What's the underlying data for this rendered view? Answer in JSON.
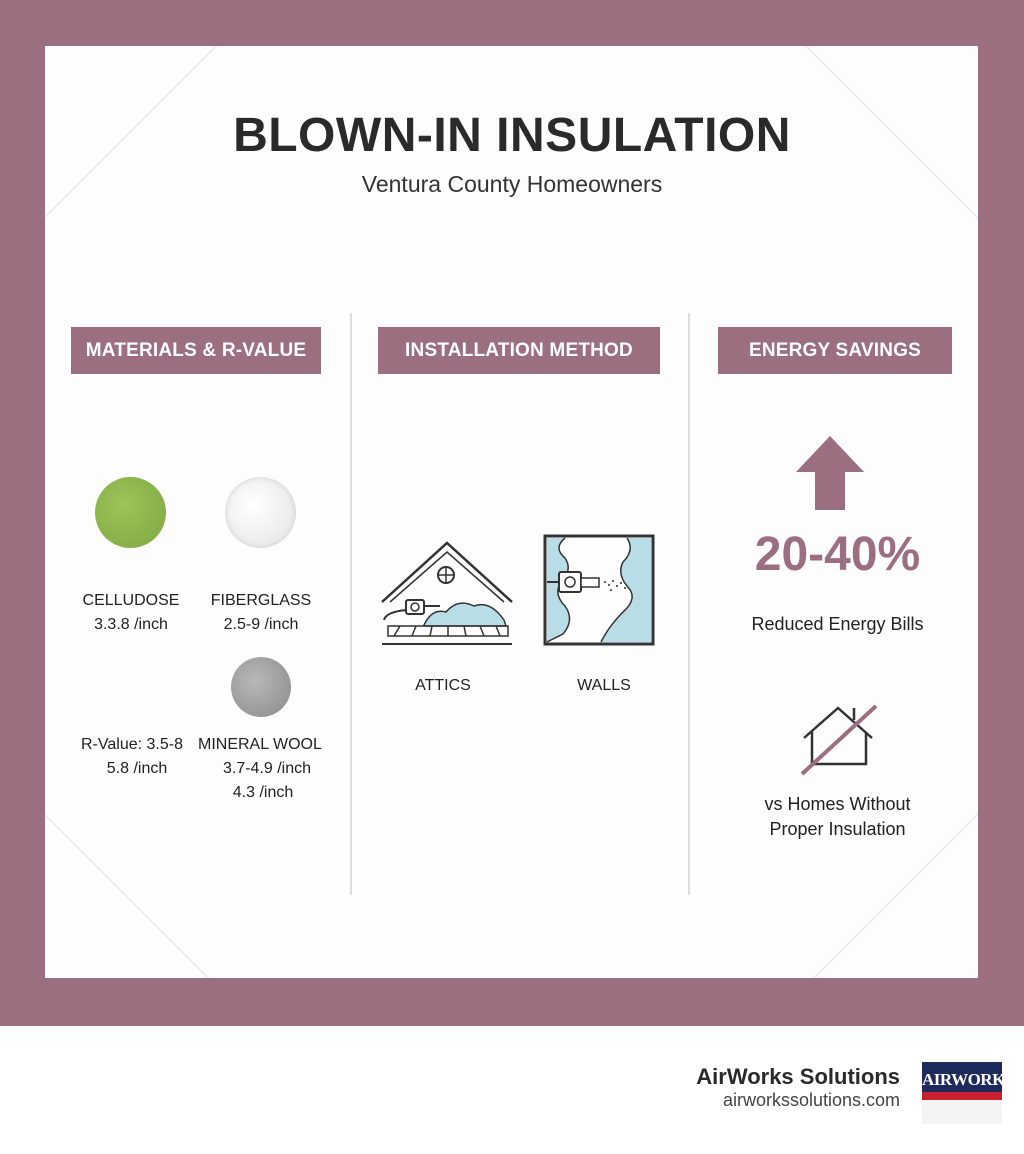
{
  "title": "BLOWN-IN INSULATION",
  "subtitle": "Ventura County Homeowners",
  "colors": {
    "accent": "#9b6f80",
    "cellulose": "#8ab04a",
    "fiberglass": "#ececec",
    "mineral_wool": "#9a9a9a",
    "insulation_fill": "#b9dde6"
  },
  "columns": {
    "materials": {
      "header": "MATERIALS & R-VALUE",
      "cellulose_name": "CELLUDOSE",
      "cellulose_value": "3.3.8 /inch",
      "fiberglass_name": "FIBERGLASS",
      "fiberglass_value": "2.5-9 /inch",
      "rvalue_label": "R-Value: 3.5-8",
      "rvalue_sub": "5.8 /inch",
      "mineral_name": "MINERAL WOOL",
      "mineral_value": "3.7-4.9 /inch",
      "mineral_sub": "4.3 /inch"
    },
    "installation": {
      "header": "INSTALLATION METHOD",
      "attics_label": "ATTICS",
      "walls_label": "WALLS"
    },
    "savings": {
      "header": "ENERGY SAVINGS",
      "percent": "20-40%",
      "percent_caption": "Reduced Energy Bills",
      "compare_line1": "vs Homes Without",
      "compare_line2": "Proper Insulation"
    }
  },
  "icons": [
    "up-arrow-icon",
    "house-slash-icon",
    "attic-icon",
    "wall-icon"
  ],
  "brand": {
    "name": "AirWorks Solutions",
    "url": "airworkssolutions.com",
    "logo_text": "AIRWORKS"
  }
}
